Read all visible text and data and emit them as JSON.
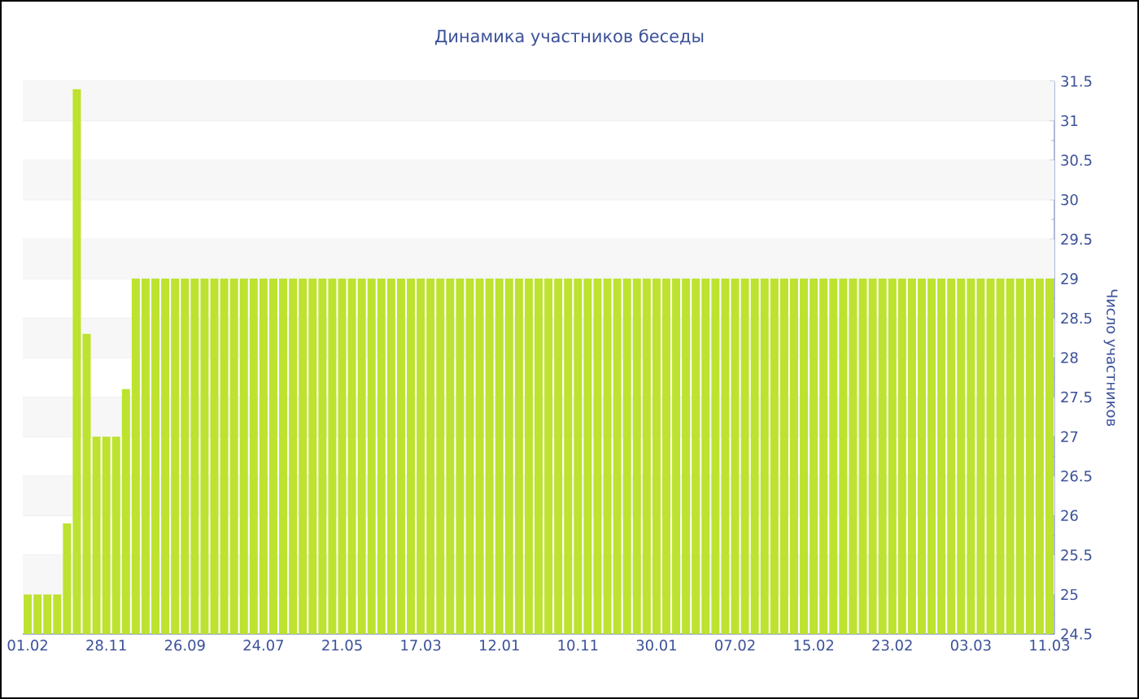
{
  "chart_data": {
    "type": "bar",
    "title": "Динамика участников беседы",
    "ylabel": "Число участников",
    "categories": [
      "01.02",
      null,
      null,
      null,
      null,
      null,
      null,
      null,
      "28.11",
      null,
      null,
      null,
      null,
      null,
      null,
      null,
      "26.09",
      null,
      null,
      null,
      null,
      null,
      null,
      null,
      "24.07",
      null,
      null,
      null,
      null,
      null,
      null,
      null,
      "21.05",
      null,
      null,
      null,
      null,
      null,
      null,
      null,
      "17.03",
      null,
      null,
      null,
      null,
      null,
      null,
      null,
      "12.01",
      null,
      null,
      null,
      null,
      null,
      null,
      null,
      "10.11",
      null,
      null,
      null,
      null,
      null,
      null,
      null,
      "30.01",
      null,
      null,
      null,
      null,
      null,
      null,
      null,
      "07.02",
      null,
      null,
      null,
      null,
      null,
      null,
      null,
      "15.02",
      null,
      null,
      null,
      null,
      null,
      null,
      null,
      "23.02",
      null,
      null,
      null,
      null,
      null,
      null,
      null,
      "03.03",
      null,
      null,
      null,
      null,
      null,
      null,
      null,
      "11.03"
    ],
    "values": [
      25,
      25,
      25,
      25,
      25.9,
      31.4,
      28.3,
      27,
      27,
      27,
      27.6,
      29,
      29,
      29,
      29,
      29,
      29,
      29,
      29,
      29,
      29,
      29,
      29,
      29,
      29,
      29,
      29,
      29,
      29,
      29,
      29,
      29,
      29,
      29,
      29,
      29,
      29,
      29,
      29,
      29,
      29,
      29,
      29,
      29,
      29,
      29,
      29,
      29,
      29,
      29,
      29,
      29,
      29,
      29,
      29,
      29,
      29,
      29,
      29,
      29,
      29,
      29,
      29,
      29,
      29,
      29,
      29,
      29,
      29,
      29,
      29,
      29,
      29,
      29,
      29,
      29,
      29,
      29,
      29,
      29,
      29,
      29,
      29,
      29,
      29,
      29,
      29,
      29,
      29,
      29,
      29,
      29,
      29,
      29,
      29,
      29,
      29,
      29,
      29,
      29,
      29,
      29,
      29,
      29,
      29
    ],
    "color": "#bde22f",
    "ylim": [
      24.5,
      31.5
    ],
    "yticks": [
      24.5,
      25,
      25.5,
      26,
      26.5,
      27,
      27.5,
      28,
      28.5,
      29,
      29.5,
      30,
      30.5,
      31,
      31.5
    ],
    "grid": "y"
  }
}
